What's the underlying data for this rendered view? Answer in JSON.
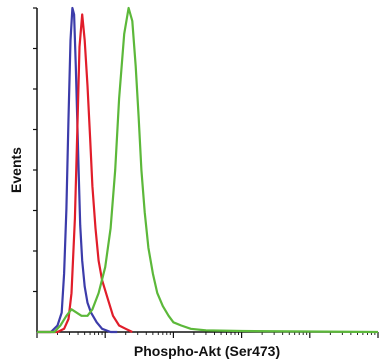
{
  "chart_data": {
    "type": "line",
    "title": "",
    "xlabel": "Phospho-Akt (Ser473)",
    "ylabel": "Events",
    "x_scale": "log",
    "xlim": [
      1,
      100000
    ],
    "ylim": [
      0,
      1
    ],
    "grid": false,
    "legend": "none",
    "series": [
      {
        "color": "#3c3caa",
        "x": [
          1,
          1.6,
          2,
          2.3,
          2.5,
          2.7,
          2.9,
          3.1,
          3.3,
          3.5,
          3.7,
          3.9,
          4.1,
          4.3,
          4.6,
          5,
          5.5,
          6.2,
          7.5,
          9,
          12,
          15
        ],
        "y": [
          0,
          0,
          0.02,
          0.06,
          0.18,
          0.38,
          0.66,
          0.9,
          1.0,
          0.98,
          0.82,
          0.65,
          0.48,
          0.33,
          0.22,
          0.14,
          0.09,
          0.06,
          0.03,
          0.01,
          0,
          0
        ]
      },
      {
        "color": "#e11d2a",
        "x": [
          1,
          2,
          2.5,
          2.9,
          3.2,
          3.6,
          3.9,
          4.2,
          4.6,
          5,
          5.5,
          6,
          6.5,
          7.2,
          8,
          9,
          11,
          13,
          16,
          20,
          25
        ],
        "y": [
          0,
          0,
          0.01,
          0.04,
          0.12,
          0.35,
          0.62,
          0.88,
          0.98,
          0.9,
          0.76,
          0.6,
          0.45,
          0.32,
          0.22,
          0.16,
          0.1,
          0.05,
          0.02,
          0.01,
          0
        ]
      },
      {
        "color": "#5cb83a",
        "x": [
          1,
          1.8,
          2.2,
          2.7,
          3.2,
          3.8,
          4.5,
          5.5,
          6.5,
          8,
          10,
          12,
          14,
          16,
          19,
          22,
          25,
          28,
          31,
          34,
          38,
          43,
          50,
          58,
          70,
          85,
          100,
          130,
          180,
          300,
          1000,
          100000
        ],
        "y": [
          0,
          0,
          0.02,
          0.05,
          0.07,
          0.06,
          0.05,
          0.05,
          0.07,
          0.12,
          0.2,
          0.32,
          0.5,
          0.72,
          0.92,
          1.0,
          0.96,
          0.82,
          0.66,
          0.5,
          0.37,
          0.26,
          0.18,
          0.12,
          0.08,
          0.05,
          0.03,
          0.02,
          0.01,
          0.005,
          0.003,
          0
        ]
      }
    ]
  }
}
